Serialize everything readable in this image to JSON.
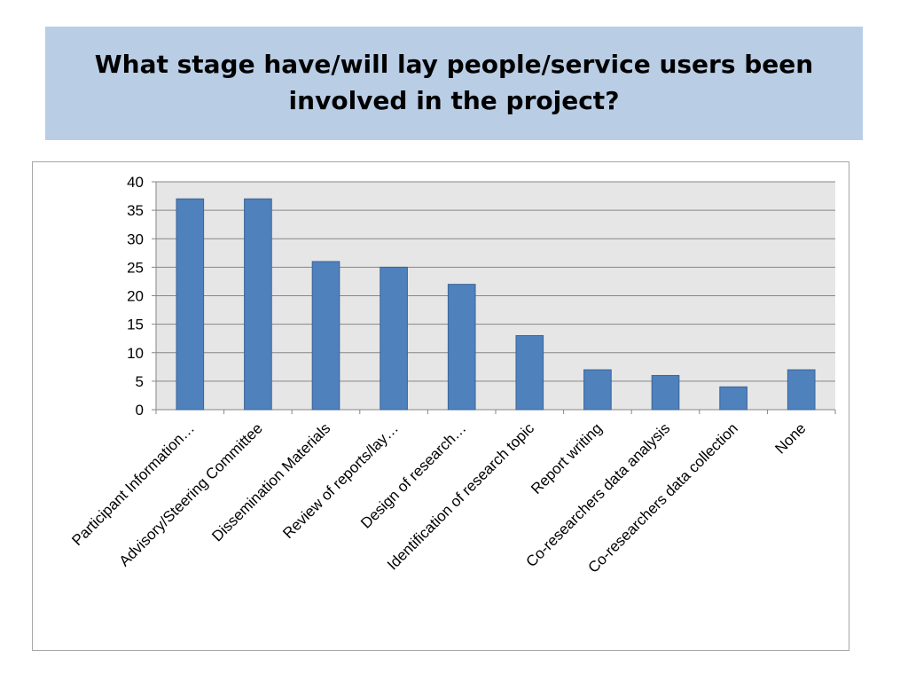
{
  "slide": {
    "title": "What stage have/will lay people/service users been involved in the project?"
  },
  "chart_data": {
    "type": "bar",
    "categories": [
      "Participant Information…",
      "Advisory/Steering Committee",
      "Dissemination Materials",
      "Review of reports/lay…",
      "Design of research…",
      "Identification of research topic",
      "Report writing",
      "Co-researchers data analysis",
      "Co-researchers data collection",
      "None"
    ],
    "values": [
      37,
      37,
      26,
      25,
      22,
      13,
      7,
      6,
      4,
      7
    ],
    "ylim": [
      0,
      40
    ],
    "yticks": [
      0,
      5,
      10,
      15,
      20,
      25,
      30,
      35,
      40
    ],
    "grid": true,
    "legend": "none",
    "colors": {
      "bar": "#4f81bd",
      "bar_edge": "#3a6496",
      "plot_background": "#e6e6e6",
      "gridline": "#868686"
    }
  }
}
